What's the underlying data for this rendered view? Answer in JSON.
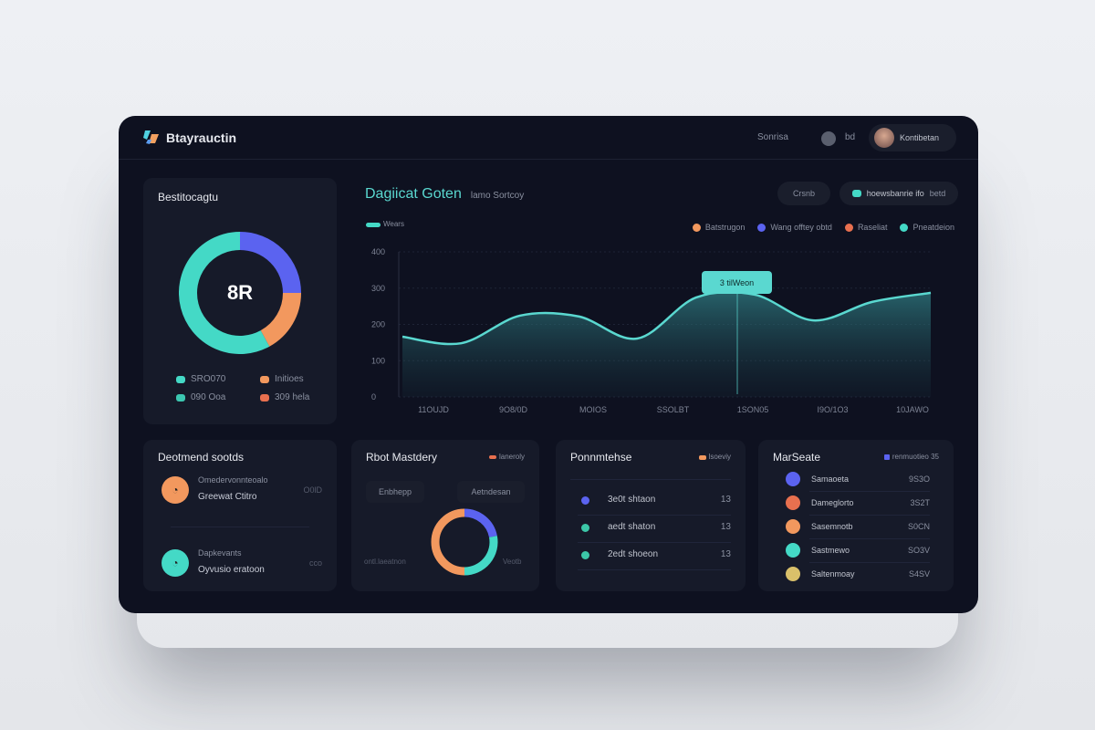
{
  "header": {
    "brand": "Btayrauctin",
    "nav_link": "Sonrisa",
    "icon_label": "bd",
    "user_name": "Kontibetan"
  },
  "donut_card": {
    "title": "Bestitocagtu",
    "center_value": "8R",
    "segments": [
      {
        "label": "blue",
        "value": 25,
        "color": "#5b63f0"
      },
      {
        "label": "orange",
        "value": 17,
        "color": "#f2985e"
      },
      {
        "label": "teal",
        "value": 58,
        "color": "#44d9c6"
      }
    ],
    "legend": [
      {
        "label": "SRO070",
        "color": "#44d9c6"
      },
      {
        "label": "Initioes",
        "color": "#f2985e"
      },
      {
        "label": "090 Ooa",
        "color": "#3cc7b1"
      },
      {
        "label": "309 hela",
        "color": "#e8704f"
      }
    ]
  },
  "main_chart": {
    "title": "Dagiicat Goten",
    "subtitle": "lamo Sortcoy",
    "filter_button": "Crsnb",
    "toggle_label": "hoewsbanrie ifo",
    "toggle_extra": "betd",
    "series_tag": "Wears",
    "legend": [
      {
        "label": "Batstrugon",
        "color": "#f2985e"
      },
      {
        "label": "Wang offtey obtd",
        "color": "#5b63f0"
      },
      {
        "label": "Raseliat",
        "color": "#e8704f"
      },
      {
        "label": "Pneatdeion",
        "color": "#44d9c6"
      }
    ],
    "tooltip": "3 tilWeon"
  },
  "chart_data": {
    "type": "area",
    "title": "Dagiicat Goten",
    "ylim": [
      0,
      400
    ],
    "yticks": [
      "0",
      "100",
      "200",
      "300",
      "400"
    ],
    "xlabels": [
      "11OUJD",
      "9O8/0D",
      "MOIOS",
      "SSOLBT",
      "1SON05",
      "I9O/1O3",
      "10JAWO"
    ],
    "series": [
      {
        "name": "Wears",
        "color": "#5ad8d0",
        "values": [
          166,
          148,
          224,
          222,
          161,
          274,
          282,
          211,
          262,
          287
        ]
      }
    ],
    "grid": true
  },
  "dept_card": {
    "title": "Deotmend sootds",
    "items": [
      {
        "line1": "Omedervonnteoalo",
        "line2": "Greewat Ctitro",
        "value": "O0lD",
        "color": "#f2985e"
      },
      {
        "line1": "Dapkevants",
        "line2": "Oyvusio eratoon",
        "value": "cco",
        "color": "#44d9c6"
      }
    ]
  },
  "mastery_card": {
    "title": "Rbot Mastdery",
    "tag": "laneroly",
    "btn_left": "Enbhepp",
    "btn_right": "Aetndesan",
    "label_left": "ontl.laeatnon",
    "label_right": "Veotb",
    "segments": [
      {
        "value": 22,
        "color": "#5b63f0"
      },
      {
        "value": 28,
        "color": "#44d9c6"
      },
      {
        "value": 50,
        "color": "#f2985e"
      }
    ]
  },
  "points_card": {
    "title": "Ponnmtehse",
    "tag": "lsoeviy",
    "items": [
      {
        "label": "3e0t shtaon",
        "value": "13",
        "color": "#5b63f0"
      },
      {
        "label": "aedt shaton",
        "value": "13",
        "color": "#3cc7a8"
      },
      {
        "label": "2edt shoeon",
        "value": "13",
        "color": "#3cc7a8"
      }
    ]
  },
  "market_card": {
    "title": "MarSeate",
    "tag": "renmuotieo 35",
    "items": [
      {
        "label": "Samaoeta",
        "value": "9S3O",
        "color": "#5b63f0"
      },
      {
        "label": "Dameglorto",
        "value": "3S2T",
        "color": "#e8704f"
      },
      {
        "label": "Sasemnotb",
        "value": "S0CN",
        "color": "#f2985e"
      },
      {
        "label": "Sastmewo",
        "value": "SO3V",
        "color": "#44d9c6"
      },
      {
        "label": "Saltenmoay",
        "value": "S4SV",
        "color": "#d9c06a"
      }
    ]
  }
}
